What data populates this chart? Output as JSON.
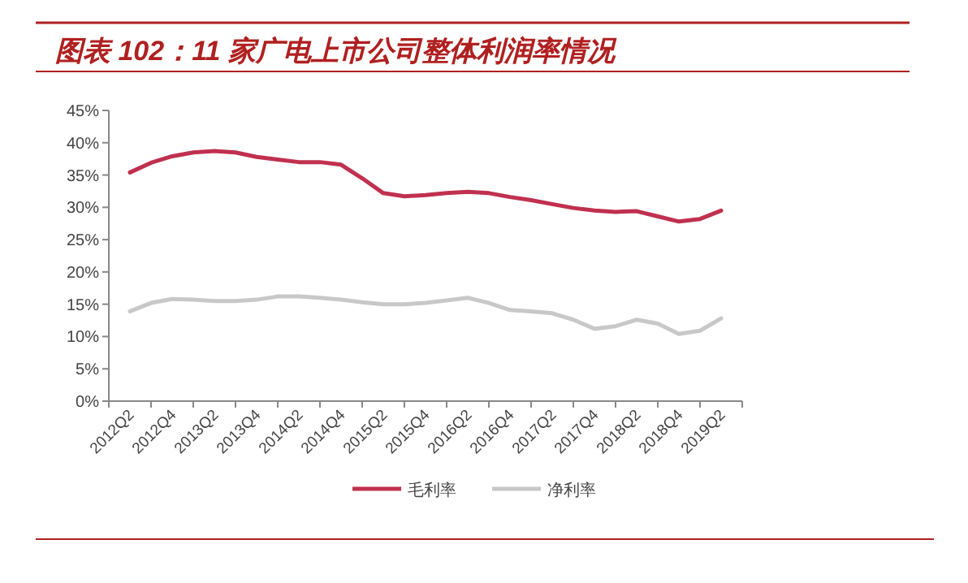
{
  "chart_data": {
    "type": "line",
    "title": "图表 102：11 家广电上市公司整体利润率情况",
    "categories": [
      "2012Q2",
      null,
      "2012Q4",
      null,
      "2013Q2",
      null,
      "2013Q4",
      null,
      "2014Q2",
      null,
      "2014Q4",
      null,
      "2015Q2",
      null,
      "2015Q4",
      null,
      "2016Q2",
      null,
      "2016Q4",
      null,
      "2017Q2",
      null,
      "2017Q4",
      null,
      "2018Q2",
      null,
      "2018Q4",
      null,
      "2019Q2"
    ],
    "series": [
      {
        "name": "毛利率",
        "color": "#c0304f",
        "values": [
          35.4,
          36.9,
          37.9,
          38.5,
          38.7,
          38.5,
          37.8,
          37.4,
          37.0,
          37.0,
          36.6,
          34.5,
          32.2,
          31.7,
          31.9,
          32.2,
          32.4,
          32.2,
          31.6,
          31.1,
          30.5,
          29.9,
          29.5,
          29.3,
          29.4,
          28.6,
          27.8,
          28.2,
          29.5
        ]
      },
      {
        "name": "净利率",
        "color": "#c8c8c8",
        "values": [
          13.9,
          15.2,
          15.8,
          15.7,
          15.5,
          15.5,
          15.7,
          16.2,
          16.2,
          16.0,
          15.7,
          15.3,
          15.0,
          15.0,
          15.2,
          15.6,
          16.0,
          15.2,
          14.1,
          13.9,
          13.6,
          12.6,
          11.2,
          11.6,
          12.6,
          12.0,
          10.4,
          10.9,
          12.8
        ]
      }
    ],
    "ylim": [
      0,
      45
    ],
    "yticks": [
      {
        "value": 0,
        "label": "0%"
      },
      {
        "value": 5,
        "label": "5%"
      },
      {
        "value": 10,
        "label": "10%"
      },
      {
        "value": 15,
        "label": "15%"
      },
      {
        "value": 20,
        "label": "20%"
      },
      {
        "value": 25,
        "label": "25%"
      },
      {
        "value": 30,
        "label": "30%"
      },
      {
        "value": 35,
        "label": "35%"
      },
      {
        "value": 40,
        "label": "40%"
      },
      {
        "value": 45,
        "label": "45%"
      }
    ],
    "legend": "bottom",
    "line_style": "solid",
    "marker": "none"
  }
}
